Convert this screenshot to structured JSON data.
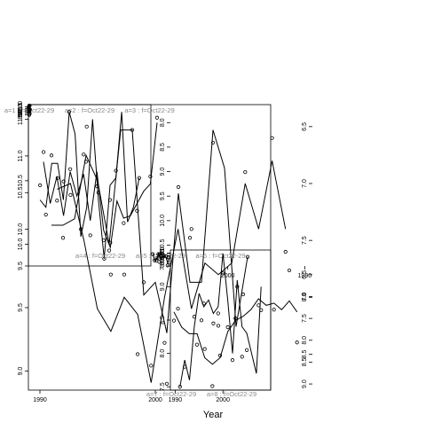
{
  "figure": {
    "xlabel": "Year",
    "line_color": "#000000",
    "point_color": "#000000",
    "panel_title_color": "#888888"
  },
  "chart_data": [
    {
      "type": "line",
      "title": "a=1 : f=Oct22-29",
      "x": [
        1991,
        1992,
        1993,
        1994,
        1995,
        1996,
        1997,
        1998,
        1999,
        2000,
        2001,
        2002,
        2003,
        2004,
        2005,
        2006,
        2007,
        2008
      ],
      "series": [
        {
          "kind": "line",
          "values": [
            10.2,
            10.5,
            10.5,
            9.5,
            10.8,
            11.5,
            9.2,
            11.3,
            9.0,
            11.0,
            9.4,
            10.4,
            11.1,
            11.6,
            9.1,
            10.9,
            11.0,
            10.1
          ]
        },
        {
          "kind": "points",
          "values": [
            10.8,
            10.5,
            null,
            9.4,
            null,
            11.1,
            null,
            11.4,
            8.5,
            null,
            9.5,
            10.3,
            null,
            11.4,
            8.9,
            null,
            null,
            10.2
          ]
        }
      ],
      "xlim": [
        1989,
        2010
      ],
      "ylim": [
        8.4,
        11.7
      ],
      "yticks": [
        8.5,
        9.0,
        9.5,
        10.0,
        10.5,
        11.0
      ],
      "xticks": [],
      "xticklabels": []
    },
    {
      "type": "line",
      "title": "a=2 : f=Oct22-29",
      "x": [
        1991,
        1992,
        1993,
        1994,
        1995,
        1996,
        1997,
        1998,
        1999,
        2000,
        2001,
        2002,
        2003,
        2004,
        2005,
        2006,
        2007,
        2008
      ],
      "series": [
        {
          "kind": "line",
          "values": [
            10.4,
            10.3,
            10.9,
            10.9,
            10.4,
            11.6,
            11.3,
            9.9,
            10.3,
            11.5,
            10.4,
            9.6,
            10.6,
            10.7,
            11.6,
            10.1,
            10.3,
            10.7
          ]
        },
        {
          "kind": "points",
          "values": [
            10.6,
            10.2,
            null,
            10.7,
            null,
            11.6,
            null,
            10.0,
            11.4,
            null,
            10.5,
            9.6,
            10.4,
            10.8,
            null,
            null,
            null,
            10.7
          ]
        }
      ],
      "xlim": [
        1989,
        2010
      ],
      "ylim": [
        9.5,
        11.7
      ],
      "yticks": [
        9.5,
        10.0,
        10.5,
        11.0,
        11.5
      ],
      "xticks": [],
      "xticklabels": []
    },
    {
      "type": "line",
      "title": "a=3 : f=Oct22-29",
      "x": [
        1991,
        1992,
        1993,
        1994,
        1995,
        1996,
        1997,
        1998,
        1999,
        2000,
        2001,
        2002,
        2003,
        2004,
        2005,
        2006,
        2007,
        2008
      ],
      "series": [
        {
          "kind": "line",
          "values": [
            10.15,
            10.15,
            10.2,
            10.7,
            10.5,
            10.0,
            10.9,
            10.9,
            9.6,
            9.7,
            9.3,
            10.4,
            9.7,
            9.7,
            10.9,
            10.6,
            9.35,
            9.9
          ]
        },
        {
          "kind": "points",
          "values": [
            10.7,
            10.05,
            null,
            10.65,
            null,
            9.95,
            null,
            10.9,
            9.7,
            null,
            8.9,
            10.45,
            10.05,
            9.4,
            10.8,
            null,
            null,
            9.9
          ]
        }
      ],
      "xlim": [
        1989,
        2010
      ],
      "ylim": [
        8.85,
        11.1
      ],
      "yticks": [
        9.0,
        9.5,
        10.0,
        10.5
      ],
      "xticks": [
        1990,
        2000
      ],
      "xticklabels": [
        "1990",
        "2000"
      ]
    },
    {
      "type": "line",
      "title": "a=4 : f=Oct22-29",
      "x": [
        1991,
        1992,
        1993,
        1994,
        1995,
        1996,
        1997,
        1998,
        1999,
        2000,
        2001,
        2002,
        2003,
        2004,
        2005,
        2006,
        2007,
        2008
      ],
      "series": [
        {
          "kind": "line",
          "values": [
            8.0,
            9.25,
            9.4,
            9.65,
            9.9,
            9.95,
            9.6,
            10.55,
            10.2,
            9.0,
            10.0,
            9.05,
            9.5,
            9.0,
            9.9,
            9.1,
            9.65,
            8.8
          ]
        },
        {
          "kind": "points",
          "values": [
            7.9,
            9.1,
            null,
            9.8,
            null,
            10.05,
            null,
            10.45,
            10.4,
            9.3,
            10.3,
            8.65,
            null,
            8.95,
            9.2,
            null,
            null,
            8.6
          ]
        }
      ],
      "xlim": [
        1989,
        2010
      ],
      "ylim": [
        7.85,
        10.6
      ],
      "yticks": [
        8.0,
        8.5,
        9.0,
        9.5,
        10.0,
        10.5
      ],
      "xticks": [],
      "xticklabels": []
    },
    {
      "type": "line",
      "title": "a=5 : f=Oct22-29",
      "x": [
        1991,
        1992,
        1993,
        1994,
        1995,
        1996,
        1997,
        1998,
        1999,
        2000,
        2001,
        2002,
        2003,
        2004,
        2005,
        2006,
        2007,
        2008
      ],
      "series": [
        {
          "kind": "line",
          "values": [
            8.6,
            8.1,
            8.7,
            9.3,
            9.4,
            9.4,
            9.3,
            9.0,
            10.3,
            9.5,
            9.4,
            10.0,
            8.9,
            9.0,
            8.5,
            8.6,
            9.4,
            9.8
          ]
        },
        {
          "kind": "points",
          "values": [
            9.1,
            7.6,
            null,
            9.4,
            null,
            9.5,
            null,
            9.0,
            10.0,
            9.5,
            8.3,
            9.8,
            9.0,
            8.5,
            null,
            8.6,
            null,
            9.8
          ]
        }
      ],
      "xlim": [
        1989,
        2010
      ],
      "ylim": [
        7.5,
        10.6
      ],
      "yticks": [
        7.5,
        8.0,
        8.5,
        9.0,
        9.5,
        10.0
      ],
      "xticks": [],
      "xticklabels": []
    },
    {
      "type": "line",
      "title": "a=6 : f=Oct22-29",
      "x": [
        1991,
        1992,
        1993,
        1994,
        1995,
        1996,
        1997,
        1998,
        1999,
        2000,
        2001,
        2002,
        2003,
        2004,
        2005,
        2006,
        2007,
        2008
      ],
      "series": [
        {
          "kind": "line",
          "values": [
            7.5,
            7.9,
            7.6,
            8.4,
            8.9,
            8.7,
            8.8,
            8.6,
            8.7,
            9.5,
            8.8,
            8.0,
            9.1,
            8.4,
            8.3,
            8.0,
            7.7,
            9.0
          ]
        },
        {
          "kind": "points",
          "values": [
            7.5,
            7.8,
            null,
            8.55,
            null,
            8.75,
            null,
            8.45,
            8.6,
            9.2,
            null,
            7.9,
            9.0,
            7.95,
            8.05,
            null,
            null,
            8.65
          ]
        }
      ],
      "xlim": [
        1989,
        2010
      ],
      "ylim": [
        7.45,
        9.55
      ],
      "yticks": [
        7.5,
        8.0,
        8.5,
        9.0,
        9.5
      ],
      "xticks": [
        1990,
        2000
      ],
      "xticklabels": [
        "1990",
        "2000"
      ]
    },
    {
      "type": "line",
      "title": "a=7 : f=Oct22-29",
      "x": [
        1991,
        1992,
        1993,
        1994,
        1995,
        1996,
        1997,
        1998,
        1999,
        2000,
        2001,
        2002,
        2003,
        2004,
        2005,
        2006,
        2007,
        2008
      ],
      "series": [
        {
          "kind": "line",
          "values": [
            7.4,
            6.8,
            7.4,
            7.0,
            7.7,
            7.8,
            7.7,
            8.1,
            7.4,
            8.0,
            8.75,
            8.15,
            8.0,
            8.3,
            8.1,
            7.5,
            7.0,
            7.05
          ]
        },
        {
          "kind": "points",
          "values": [
            7.6,
            6.6,
            null,
            6.9,
            null,
            8.25,
            null,
            7.4,
            8.1,
            8.4,
            8.6,
            8.5,
            7.8,
            7.8,
            null,
            null,
            7.1,
            7.15
          ]
        }
      ],
      "xlim": [
        1989,
        2010
      ],
      "ylim": [
        6.4,
        8.8
      ],
      "yticks": [
        6.5,
        7.0,
        7.5,
        8.0,
        8.5
      ],
      "xticks": [],
      "xticklabels": []
    },
    {
      "type": "line",
      "title": "a=8 : f=Oct22-29",
      "x": [
        1991,
        1992,
        1993,
        1994,
        1995,
        1996,
        1997,
        1998,
        1999,
        2000,
        2001,
        2002,
        2003,
        2004,
        2005,
        2006,
        2007,
        2008
      ],
      "series": [
        {
          "kind": "line",
          "values": [
            7.35,
            7.1,
            7.3,
            7.15,
            7.2,
            7.05,
            7.3,
            7.45,
            7.55,
            7.8,
            8.4,
            8.55,
            8.4,
            7.85,
            7.85,
            7.7,
            7.35,
            null
          ]
        },
        {
          "kind": "points",
          "values": [
            8.05,
            6.4,
            null,
            7.3,
            null,
            7.2,
            null,
            6.95,
            7.5,
            7.7,
            8.35,
            9.05,
            8.2,
            8.1,
            null,
            null,
            7.55,
            null
          ]
        }
      ],
      "xlim": [
        1989,
        2010
      ],
      "ylim": [
        6.3,
        9.1
      ],
      "yticks": [
        6.5,
        7.0,
        7.5,
        8.0,
        8.5,
        9.0
      ],
      "xticks": [
        1990,
        2000
      ],
      "xticklabels": [
        "1990",
        "2000"
      ]
    }
  ]
}
